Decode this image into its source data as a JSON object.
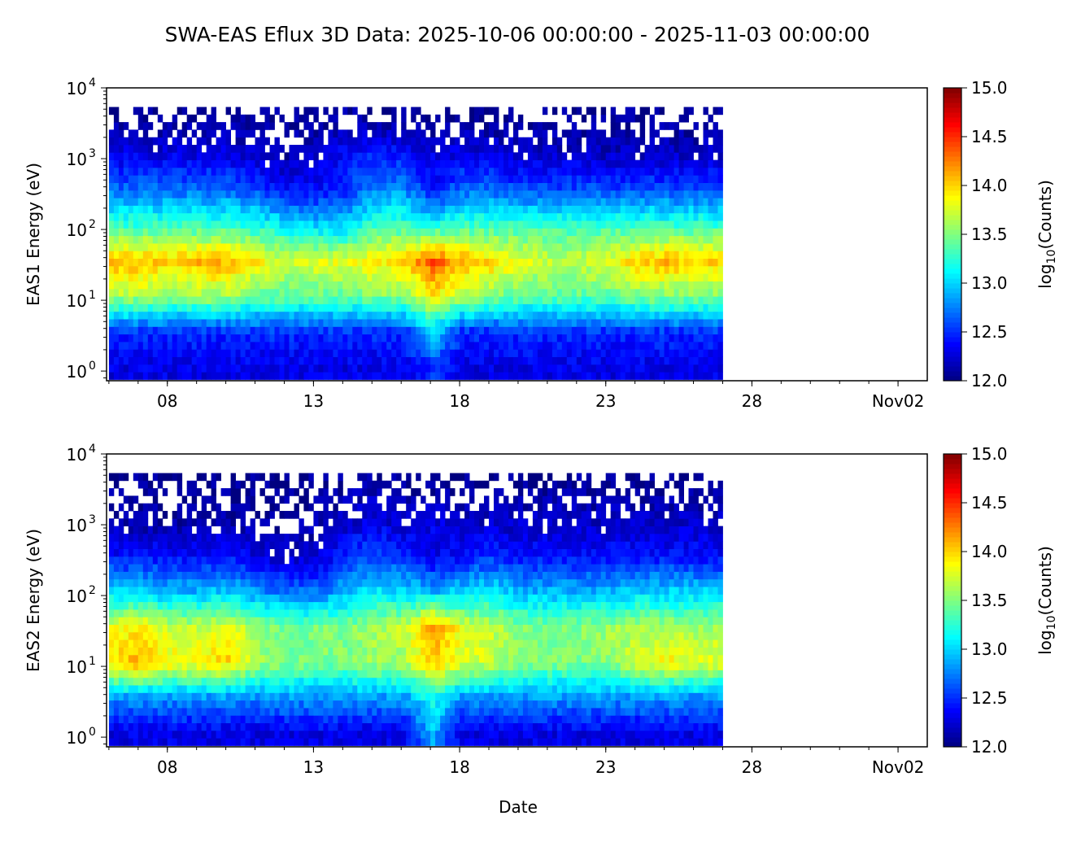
{
  "chart_data": {
    "type": "heatmap",
    "title": "SWA-EAS Eflux 3D Data: 2025-10-06 00:00:00 - 2025-11-03 00:00:00",
    "xlabel": "Date",
    "xlim_days_from_oct06": [
      -0.08,
      28.0
    ],
    "xticks": [
      {
        "day": 2,
        "label": "08"
      },
      {
        "day": 7,
        "label": "13"
      },
      {
        "day": 12,
        "label": "18"
      },
      {
        "day": 17,
        "label": "23"
      },
      {
        "day": 22,
        "label": "28"
      },
      {
        "day": 27,
        "label": "Nov02"
      }
    ],
    "ylim": [
      0.73,
      10000
    ],
    "yscale": "log",
    "yticks": [
      {
        "v": 1,
        "base": "10",
        "exp": "0"
      },
      {
        "v": 10,
        "base": "10",
        "exp": "1"
      },
      {
        "v": 100,
        "base": "10",
        "exp": "2"
      },
      {
        "v": 1000,
        "base": "10",
        "exp": "3"
      },
      {
        "v": 10000,
        "base": "10",
        "exp": "4"
      }
    ],
    "colorbar": {
      "label_pre": "log",
      "label_sub": "10",
      "label_post": "(Counts)",
      "range": [
        12,
        15
      ],
      "ticks": [
        "12.0",
        "12.5",
        "13.0",
        "13.5",
        "14.0",
        "14.5",
        "15.0"
      ],
      "colormap": "jet"
    },
    "energies_eV": [
      1,
      3.16,
      10,
      31.6,
      100,
      316,
      1000,
      3162
    ],
    "days": [
      6,
      7,
      8,
      9,
      10,
      11,
      12,
      13,
      14,
      15,
      16,
      17,
      18,
      19,
      20,
      21,
      22,
      23,
      24,
      25,
      26
    ],
    "panels": [
      {
        "ylabel": "EAS1 Energy (eV)",
        "z": [
          [
            12.3,
            12.3,
            12.3,
            12.3,
            12.3,
            12.3,
            12.3,
            12.3,
            12.3,
            12.3,
            12.3,
            12.5,
            12.3,
            12.3,
            12.3,
            12.3,
            12.3,
            12.3,
            12.3,
            12.3,
            12.3
          ],
          [
            12.5,
            12.5,
            12.5,
            12.5,
            12.5,
            12.5,
            12.5,
            12.5,
            12.5,
            12.5,
            12.5,
            13.0,
            12.5,
            12.5,
            12.5,
            12.5,
            12.5,
            12.5,
            12.5,
            12.5,
            12.5
          ],
          [
            13.6,
            13.6,
            13.5,
            13.6,
            13.6,
            13.4,
            13.4,
            13.4,
            13.4,
            13.5,
            13.5,
            13.9,
            13.6,
            13.5,
            13.4,
            13.4,
            13.4,
            13.4,
            13.5,
            13.5,
            13.5
          ],
          [
            14.1,
            14.1,
            14.0,
            14.1,
            14.1,
            13.9,
            13.7,
            13.8,
            13.8,
            13.9,
            14.0,
            14.4,
            14.1,
            14.0,
            13.8,
            13.7,
            13.7,
            13.8,
            14.0,
            14.1,
            14.0
          ],
          [
            13.3,
            13.3,
            13.3,
            13.3,
            13.3,
            13.2,
            13.1,
            13.0,
            13.0,
            13.3,
            13.3,
            13.2,
            13.3,
            13.3,
            13.3,
            13.3,
            13.3,
            13.3,
            13.3,
            13.3,
            13.3
          ],
          [
            12.7,
            12.7,
            12.7,
            12.7,
            12.7,
            12.6,
            12.4,
            12.4,
            12.5,
            12.8,
            12.8,
            12.4,
            12.7,
            12.7,
            12.6,
            12.6,
            12.6,
            12.6,
            12.6,
            12.6,
            12.6
          ],
          [
            12.3,
            12.3,
            12.3,
            12.3,
            12.3,
            12.2,
            12.1,
            12.2,
            12.4,
            12.5,
            12.4,
            12.3,
            12.3,
            12.3,
            12.2,
            12.2,
            12.2,
            12.2,
            12.2,
            12.2,
            12.2
          ],
          [
            12.05,
            12.05,
            12.05,
            12.05,
            12.05,
            12.05,
            12.05,
            12.05,
            12.1,
            12.05,
            12.05,
            12.05,
            12.05,
            12.05,
            12.05,
            12.05,
            12.05,
            12.05,
            12.05,
            12.05,
            12.05
          ]
        ]
      },
      {
        "ylabel": "EAS2 Energy (eV)",
        "z": [
          [
            12.3,
            12.3,
            12.3,
            12.3,
            12.3,
            12.3,
            12.3,
            12.3,
            12.3,
            12.3,
            12.3,
            12.9,
            12.3,
            12.3,
            12.3,
            12.3,
            12.3,
            12.3,
            12.3,
            12.3,
            12.3
          ],
          [
            12.8,
            12.8,
            12.8,
            12.8,
            12.8,
            12.8,
            12.8,
            12.8,
            12.8,
            12.8,
            12.8,
            13.2,
            12.8,
            12.8,
            12.8,
            12.8,
            12.8,
            12.8,
            12.8,
            12.8,
            12.8
          ],
          [
            14.0,
            14.1,
            13.9,
            13.9,
            14.0,
            13.6,
            13.5,
            13.5,
            13.5,
            13.6,
            13.6,
            14.0,
            13.8,
            13.7,
            13.5,
            13.5,
            13.5,
            13.5,
            13.8,
            13.9,
            13.8
          ],
          [
            13.8,
            13.9,
            13.7,
            13.7,
            13.8,
            13.6,
            13.4,
            13.5,
            13.5,
            13.6,
            13.7,
            14.2,
            13.8,
            13.7,
            13.5,
            13.5,
            13.5,
            13.6,
            13.6,
            13.6,
            13.6
          ],
          [
            13.0,
            13.0,
            12.9,
            12.9,
            13.0,
            12.8,
            12.7,
            12.7,
            12.9,
            13.1,
            13.0,
            12.9,
            13.0,
            13.1,
            12.9,
            12.9,
            12.9,
            12.9,
            13.0,
            13.0,
            13.0
          ],
          [
            12.4,
            12.4,
            12.4,
            12.4,
            12.4,
            12.3,
            12.2,
            12.2,
            12.5,
            12.6,
            12.5,
            12.3,
            12.4,
            12.5,
            12.4,
            12.4,
            12.4,
            12.4,
            12.4,
            12.4,
            12.4
          ],
          [
            12.1,
            12.1,
            12.1,
            12.1,
            12.1,
            12.1,
            12.1,
            12.1,
            12.2,
            12.3,
            12.2,
            12.3,
            12.2,
            12.2,
            12.2,
            12.2,
            12.2,
            12.2,
            12.2,
            12.2,
            12.2
          ],
          [
            12.05,
            12.05,
            12.05,
            12.05,
            12.05,
            12.05,
            12.05,
            12.05,
            12.1,
            12.1,
            12.05,
            12.05,
            12.05,
            12.05,
            12.05,
            12.05,
            12.05,
            12.05,
            12.05,
            12.05,
            12.05
          ]
        ]
      }
    ]
  }
}
